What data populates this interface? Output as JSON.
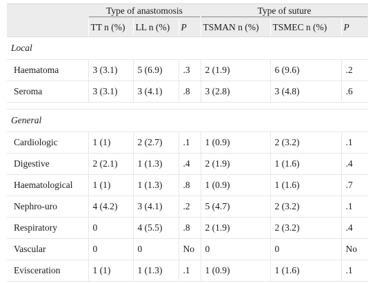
{
  "header": {
    "group_anastomosis": "Type of anastomosis",
    "group_suture": "Type of suture",
    "col_tt": "TT n (%)",
    "col_ll": "LL n (%)",
    "col_p1": "P",
    "col_tsman": "TSMAN n (%)",
    "col_tsmec": "TSMEC n (%)",
    "col_p2": "P"
  },
  "sections": {
    "local": {
      "title": "Local",
      "rows": [
        {
          "label": "Haematoma",
          "tt": "3 (3.1)",
          "ll": "5 (6.9)",
          "p1": ".3",
          "tsman": "2 (1.9)",
          "tsmec": "6 (9.6)",
          "p2": ".2"
        },
        {
          "label": "Seroma",
          "tt": "3 (3.1)",
          "ll": "3 (4.1)",
          "p1": ".8",
          "tsman": "3 (2.8)",
          "tsmec": "3 (4.8)",
          "p2": ".6"
        }
      ]
    },
    "general": {
      "title": "General",
      "rows": [
        {
          "label": "Cardiologic",
          "tt": "1 (1)",
          "ll": "2 (2.7)",
          "p1": ".1",
          "tsman": "1 (0.9)",
          "tsmec": "2 (3.2)",
          "p2": ".1"
        },
        {
          "label": "Digestive",
          "tt": "2 (2.1)",
          "ll": "1 (1.3)",
          "p1": ".4",
          "tsman": "2 (1.9)",
          "tsmec": "1 (1.6)",
          "p2": ".4"
        },
        {
          "label": "Haematological",
          "tt": "1 (1)",
          "ll": "1 (1.3)",
          "p1": ".8",
          "tsman": "1 (0.9)",
          "tsmec": "1 (1.6)",
          "p2": ".7"
        },
        {
          "label": "Nephro-uro",
          "tt": "4 (4.2)",
          "ll": "3 (4.1)",
          "p1": ".2",
          "tsman": "5 (4.7)",
          "tsmec": "2 (3.2)",
          "p2": ".1"
        },
        {
          "label": "Respiratory",
          "tt": "0",
          "ll": "4 (5.5)",
          "p1": ".8",
          "tsman": "2 (1.9)",
          "tsmec": "2 (3.2)",
          "p2": ".4"
        },
        {
          "label": "Vascular",
          "tt": "0",
          "ll": "0",
          "p1": "No",
          "tsman": "0",
          "tsmec": "0",
          "p2": "No"
        },
        {
          "label": "Evisceration",
          "tt": "1 (1)",
          "ll": "1 (1.3)",
          "p1": ".1",
          "tsman": "1 (0.9)",
          "tsmec": "1 (1.6)",
          "p2": ".1"
        }
      ]
    }
  }
}
